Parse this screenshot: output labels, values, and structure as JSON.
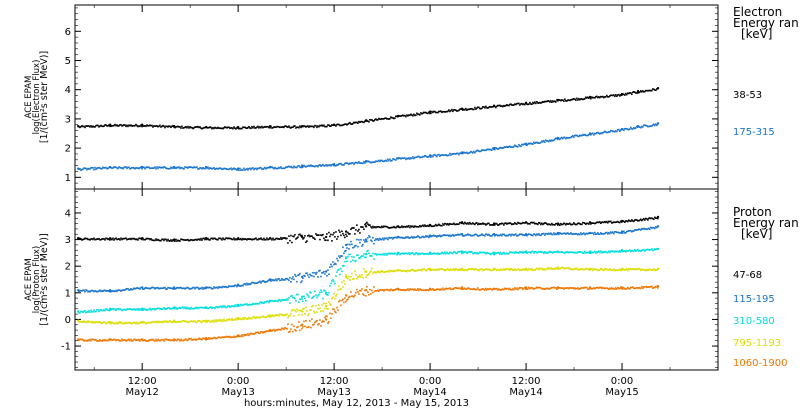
{
  "xaxis": {
    "title": "hours:minutes, May 12, 2013 - May 15, 2013",
    "ticks": [
      {
        "t": 12,
        "top": "12:00",
        "bottom": "May12"
      },
      {
        "t": 24,
        "top": "0:00",
        "bottom": "May13"
      },
      {
        "t": 36,
        "top": "12:00",
        "bottom": "May13"
      },
      {
        "t": 48,
        "top": "0:00",
        "bottom": "May14"
      },
      {
        "t": 60,
        "top": "12:00",
        "bottom": "May14"
      },
      {
        "t": 72,
        "top": "0:00",
        "bottom": "May15"
      }
    ]
  },
  "chart_data": [
    {
      "type": "scatter",
      "panel": "electron",
      "ylabel": [
        "ACE EPAM",
        "log(Electron Flux)",
        "[1/(cm²s ster MeV)]"
      ],
      "ylim": [
        0.6,
        6.9
      ],
      "yticks": [
        1,
        2,
        3,
        4,
        5,
        6
      ],
      "xlim": [
        3.6,
        84
      ],
      "legend_title": [
        "Electron",
        "Energy ran",
        "[keV]"
      ],
      "series": [
        {
          "name": "38-53",
          "color": "#000000",
          "x": [
            4,
            8,
            12,
            16,
            20,
            24,
            28,
            32,
            36,
            40,
            44,
            48,
            52,
            56,
            60,
            64,
            68,
            72,
            74,
            76.5
          ],
          "values": [
            2.75,
            2.8,
            2.8,
            2.75,
            2.72,
            2.72,
            2.75,
            2.75,
            2.8,
            2.95,
            3.1,
            3.25,
            3.35,
            3.45,
            3.55,
            3.65,
            3.75,
            3.85,
            3.95,
            4.05
          ]
        },
        {
          "name": "175-315",
          "color": "#1874cd",
          "x": [
            4,
            8,
            12,
            16,
            20,
            24,
            28,
            32,
            36,
            40,
            44,
            48,
            52,
            56,
            60,
            64,
            68,
            72,
            74,
            76.5
          ],
          "values": [
            1.3,
            1.35,
            1.35,
            1.35,
            1.35,
            1.3,
            1.35,
            1.4,
            1.45,
            1.55,
            1.65,
            1.75,
            1.85,
            2.0,
            2.15,
            2.35,
            2.5,
            2.65,
            2.75,
            2.85
          ]
        }
      ]
    },
    {
      "type": "scatter",
      "panel": "proton",
      "ylabel": [
        "ACE EPAM",
        "log(Proton Flux)",
        "[1/(cm²s ster MeV)]"
      ],
      "ylim": [
        -1.9,
        4.9
      ],
      "yticks": [
        -1,
        0,
        1,
        2,
        3,
        4
      ],
      "xlim": [
        3.6,
        84
      ],
      "legend_title": [
        "Proton",
        "Energy ran",
        "[keV]"
      ],
      "series": [
        {
          "name": "47-68",
          "color": "#000000",
          "x": [
            4,
            8,
            12,
            16,
            20,
            24,
            28,
            32,
            35,
            37.5,
            40,
            44,
            48,
            52,
            56,
            60,
            64,
            68,
            72,
            76.5
          ],
          "values": [
            3.05,
            3.05,
            3.05,
            3.0,
            3.05,
            3.05,
            3.05,
            3.1,
            3.1,
            3.3,
            3.5,
            3.5,
            3.55,
            3.65,
            3.6,
            3.65,
            3.6,
            3.65,
            3.7,
            3.85
          ]
        },
        {
          "name": "115-195",
          "color": "#1874cd",
          "x": [
            4,
            8,
            12,
            16,
            20,
            24,
            28,
            32,
            35,
            37.5,
            40,
            44,
            48,
            52,
            56,
            60,
            64,
            68,
            72,
            76.5
          ],
          "values": [
            1.1,
            1.1,
            1.2,
            1.2,
            1.2,
            1.3,
            1.5,
            1.6,
            1.8,
            2.8,
            3.0,
            3.1,
            3.15,
            3.2,
            3.2,
            3.2,
            3.25,
            3.25,
            3.3,
            3.5
          ]
        },
        {
          "name": "310-580",
          "color": "#00dddd",
          "x": [
            4,
            8,
            12,
            16,
            20,
            24,
            28,
            32,
            35,
            37.5,
            40,
            44,
            48,
            52,
            56,
            60,
            64,
            68,
            72,
            76.5
          ],
          "values": [
            0.3,
            0.4,
            0.4,
            0.45,
            0.45,
            0.55,
            0.7,
            0.85,
            1.0,
            2.3,
            2.45,
            2.5,
            2.5,
            2.55,
            2.5,
            2.55,
            2.55,
            2.55,
            2.6,
            2.65
          ]
        },
        {
          "name": "795-1193",
          "color": "#dddd00",
          "x": [
            4,
            8,
            12,
            16,
            20,
            24,
            28,
            32,
            35,
            37.5,
            40,
            44,
            48,
            52,
            56,
            60,
            64,
            68,
            72,
            76.5
          ],
          "values": [
            -0.05,
            -0.1,
            -0.1,
            -0.05,
            -0.05,
            0.05,
            0.15,
            0.3,
            0.5,
            1.6,
            1.8,
            1.85,
            1.9,
            1.9,
            1.9,
            1.9,
            1.95,
            1.9,
            1.9,
            1.9
          ]
        },
        {
          "name": "1060-1900",
          "color": "#ee7600",
          "x": [
            4,
            8,
            12,
            16,
            20,
            24,
            28,
            32,
            35,
            37.5,
            40,
            44,
            48,
            52,
            56,
            60,
            64,
            68,
            72,
            76.5
          ],
          "values": [
            -0.75,
            -0.75,
            -0.75,
            -0.75,
            -0.7,
            -0.6,
            -0.4,
            -0.2,
            0.0,
            0.9,
            1.1,
            1.15,
            1.15,
            1.2,
            1.15,
            1.2,
            1.2,
            1.2,
            1.2,
            1.25
          ]
        }
      ]
    }
  ]
}
